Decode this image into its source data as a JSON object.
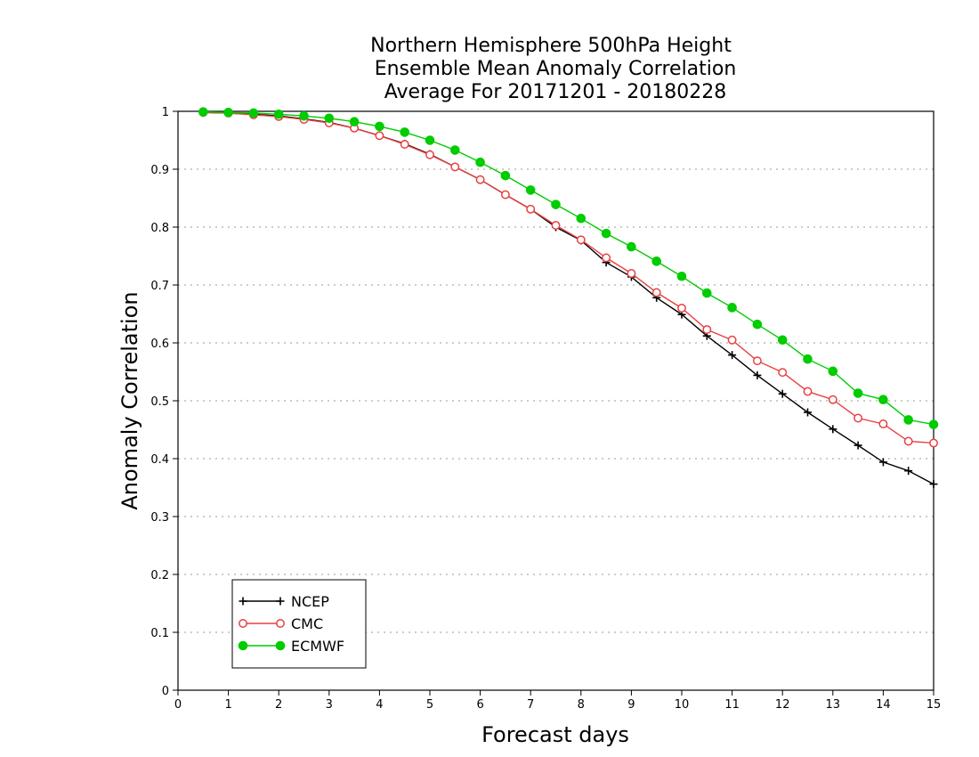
{
  "chart_data": {
    "type": "line",
    "title": [
      "Northern Hemisphere 500hPa Height",
      "Ensemble Mean Anomaly Correlation",
      "Average For 20171201 - 20180228"
    ],
    "xlabel": "Forecast days",
    "ylabel": "Anomaly Correlation",
    "xlim": [
      0,
      15
    ],
    "ylim": [
      0,
      1
    ],
    "x_ticks": [
      "0",
      "1",
      "2",
      "3",
      "4",
      "5",
      "6",
      "7",
      "8",
      "9",
      "10",
      "11",
      "12",
      "13",
      "14",
      "15"
    ],
    "y_ticks": [
      "0",
      "0.1",
      "0.2",
      "0.3",
      "0.4",
      "0.5",
      "0.6",
      "0.7",
      "0.8",
      "0.9",
      "1"
    ],
    "grid": true,
    "legend_position": "bottom-left",
    "x": [
      0.5,
      1,
      1.5,
      2,
      2.5,
      3,
      3.5,
      4,
      4.5,
      5,
      5.5,
      6,
      6.5,
      7,
      7.5,
      8,
      8.5,
      9,
      9.5,
      10,
      10.5,
      11,
      11.5,
      12,
      12.5,
      13,
      13.5,
      14,
      14.5,
      15
    ],
    "series": [
      {
        "name": "NCEP",
        "color": "#000000",
        "marker": "plus",
        "values": [
          0.998,
          0.997,
          0.995,
          0.992,
          0.987,
          0.981,
          0.971,
          0.958,
          0.944,
          0.926,
          0.904,
          0.882,
          0.856,
          0.831,
          0.8,
          0.777,
          0.739,
          0.714,
          0.678,
          0.649,
          0.612,
          0.579,
          0.544,
          0.512,
          0.48,
          0.451,
          0.423,
          0.394,
          0.379,
          0.356
        ]
      },
      {
        "name": "CMC",
        "color": "#e84040",
        "marker": "open-circle",
        "values": [
          0.998,
          0.997,
          0.994,
          0.991,
          0.986,
          0.98,
          0.971,
          0.958,
          0.943,
          0.925,
          0.904,
          0.882,
          0.856,
          0.831,
          0.803,
          0.778,
          0.747,
          0.72,
          0.687,
          0.66,
          0.623,
          0.605,
          0.569,
          0.549,
          0.516,
          0.502,
          0.47,
          0.46,
          0.43,
          0.427
        ]
      },
      {
        "name": "ECMWF",
        "color": "#00cc00",
        "marker": "filled-circle",
        "values": [
          0.999,
          0.998,
          0.997,
          0.995,
          0.992,
          0.988,
          0.982,
          0.974,
          0.964,
          0.95,
          0.933,
          0.912,
          0.889,
          0.864,
          0.839,
          0.815,
          0.789,
          0.766,
          0.741,
          0.715,
          0.686,
          0.661,
          0.632,
          0.605,
          0.572,
          0.551,
          0.513,
          0.502,
          0.467,
          0.459
        ]
      }
    ]
  }
}
